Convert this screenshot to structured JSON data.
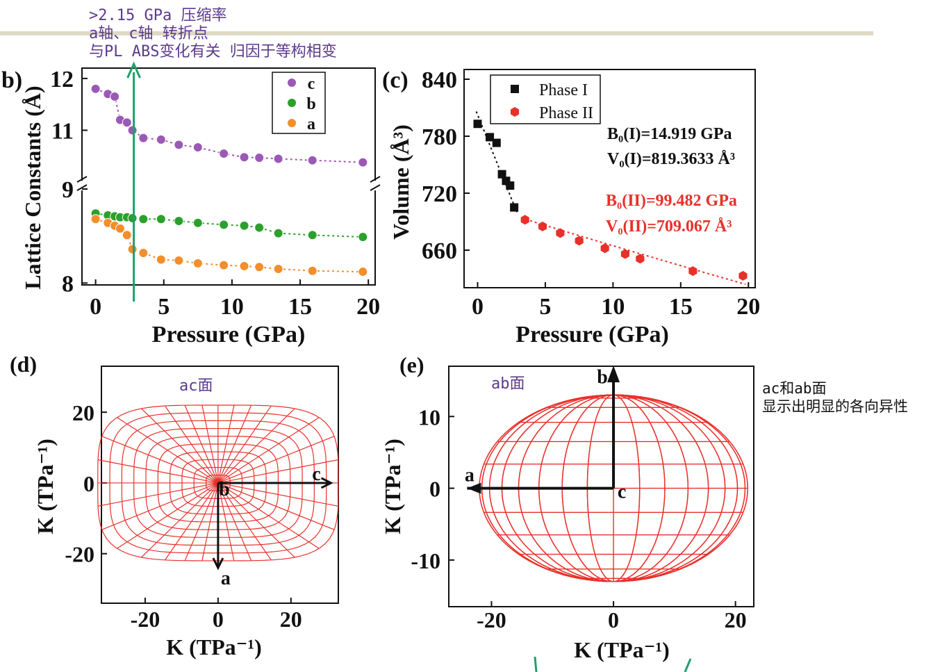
{
  "annotations": {
    "top_notes": [
      ">2.15 GPa 压缩率",
      "a轴、c轴 转折点",
      "与PL ABS变化有关   归因于等构相变"
    ],
    "ac_plane": "ac面",
    "ab_plane": "ab面",
    "side_notes": [
      "ac和ab面",
      "显示出明显的各向异性"
    ]
  },
  "colors": {
    "band": "#ddd9c3",
    "annotation_line": "#1fa06a",
    "c_series": "#9b59b6",
    "b_series": "#2ca02c",
    "a_series": "#f28e2b",
    "phase1": "#111111",
    "phase2": "#e8302a",
    "mesh": "#e8302a"
  },
  "chart_data": [
    {
      "panel": "(b)",
      "panel_label": "b)",
      "type": "scatter",
      "xlabel": "Pressure (GPa)",
      "ylabel": "Lattice Constants (Å)",
      "xlim": [
        -1,
        20.5
      ],
      "xticks": [
        "0",
        "5",
        "10",
        "15",
        "20"
      ],
      "yticks": [
        "8",
        "9",
        "11",
        "12"
      ],
      "broken_y_axis": true,
      "legend": [
        "c",
        "b",
        "a"
      ],
      "legend_position": "top-right",
      "marker_line_x": 2.8,
      "series": [
        {
          "name": "c",
          "x": [
            0,
            0.9,
            1.4,
            1.8,
            2.3,
            2.7,
            3.5,
            4.8,
            6.1,
            7.5,
            9.4,
            10.9,
            12.0,
            13.4,
            15.9,
            19.6
          ],
          "y": [
            11.8,
            11.7,
            11.65,
            11.2,
            11.15,
            11.0,
            10.85,
            10.82,
            10.72,
            10.67,
            10.55,
            10.48,
            10.47,
            10.45,
            10.42,
            10.38
          ]
        },
        {
          "name": "b",
          "x": [
            0,
            0.9,
            1.4,
            1.8,
            2.3,
            2.7,
            3.5,
            4.8,
            6.1,
            7.5,
            9.4,
            10.9,
            12.0,
            13.4,
            15.9,
            19.6
          ],
          "y": [
            8.74,
            8.72,
            8.71,
            8.7,
            8.7,
            8.69,
            8.68,
            8.68,
            8.66,
            8.64,
            8.62,
            8.61,
            8.59,
            8.53,
            8.51,
            8.49
          ]
        },
        {
          "name": "a",
          "x": [
            0,
            0.9,
            1.4,
            1.8,
            2.3,
            2.7,
            3.5,
            4.8,
            6.1,
            7.5,
            9.4,
            10.9,
            12.0,
            13.4,
            15.9,
            19.6
          ],
          "y": [
            8.68,
            8.64,
            8.61,
            8.58,
            8.51,
            8.36,
            8.32,
            8.25,
            8.24,
            8.21,
            8.19,
            8.18,
            8.17,
            8.15,
            8.13,
            8.12
          ]
        }
      ]
    },
    {
      "panel": "(c)",
      "panel_label": "(c)",
      "type": "scatter",
      "xlabel": "Pressure (GPa)",
      "ylabel": "Volume (Å³)",
      "xlim": [
        -1,
        20.5
      ],
      "ylim": [
        630,
        845
      ],
      "xticks": [
        "0",
        "5",
        "10",
        "15",
        "20"
      ],
      "yticks": [
        "660",
        "720",
        "780",
        "840"
      ],
      "legend_position": "top-left",
      "series": [
        {
          "name": "Phase I",
          "x": [
            0,
            0.9,
            1.4,
            1.8,
            2.1,
            2.4,
            2.7
          ],
          "y": [
            793,
            779,
            773,
            740,
            733,
            728,
            705
          ]
        },
        {
          "name": "Phase II",
          "x": [
            3.5,
            4.8,
            6.1,
            7.5,
            9.4,
            10.9,
            12.0,
            15.9,
            19.6
          ],
          "y": [
            692,
            685,
            678,
            670,
            662,
            656,
            651,
            638,
            633
          ]
        }
      ],
      "fit_text": {
        "phase1": [
          "B₀(I)=14.919 GPa",
          "V₀(I)=819.3633 Å³"
        ],
        "phase2": [
          "B₀(II)=99.482 GPa",
          "V₀(II)=709.067 Å³"
        ]
      }
    },
    {
      "panel": "(d)",
      "panel_label": "(d)",
      "type": "polar-mesh",
      "xlabel": "K (TPa⁻¹)",
      "ylabel": "K (TPa⁻¹)",
      "xlim": [
        -32,
        33
      ],
      "ylim": [
        -34,
        33
      ],
      "xticks": [
        "-20",
        "0",
        "20"
      ],
      "yticks": [
        "20",
        "0",
        "-20"
      ],
      "x_semi_axis": 33,
      "y_semi_axis": 22,
      "superellipse_exponent": 4,
      "axis_labels": {
        "x_arrow": "c",
        "y_arrow": "a",
        "center": "b"
      }
    },
    {
      "panel": "(e)",
      "panel_label": "(e)",
      "type": "ellipsoid-mesh",
      "xlabel": "K (TPa⁻¹)",
      "ylabel": "K (TPa⁻¹)",
      "xlim": [
        -27,
        23
      ],
      "ylim": [
        -16.5,
        17
      ],
      "xticks": [
        "-20",
        "0",
        "20"
      ],
      "yticks": [
        "10",
        "0",
        "-10"
      ],
      "x_semi_axis": 22,
      "y_semi_axis": 13,
      "axis_labels": {
        "x_arrow": "a",
        "y_arrow": "b",
        "center": "c"
      }
    }
  ]
}
